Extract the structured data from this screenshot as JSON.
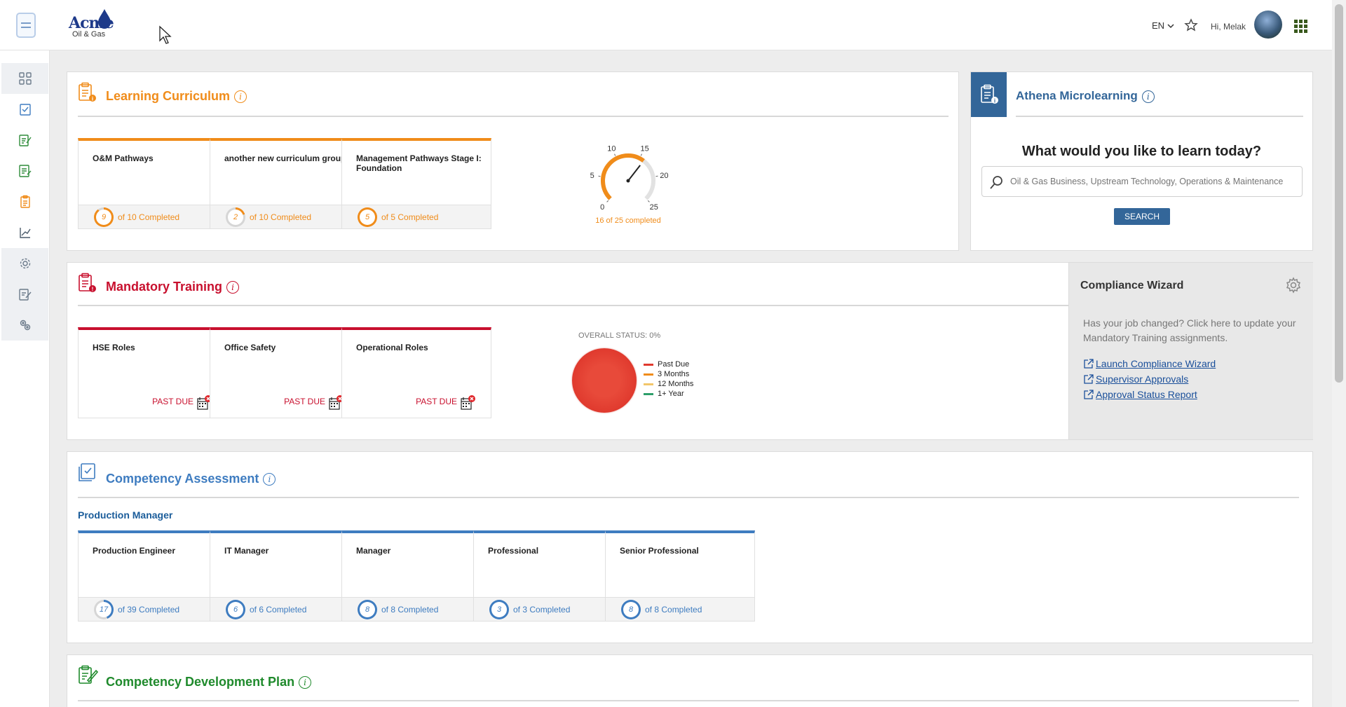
{
  "header": {
    "logo_word": "Acme",
    "logo_sub": "Oil & Gas",
    "language": "EN",
    "greeting": "Hi, Melak"
  },
  "learning": {
    "title": "Learning Curriculum",
    "tiles": [
      {
        "name": "O&M Pathways",
        "count": "9",
        "text": "of 10 Completed",
        "progress": 0.9
      },
      {
        "name": "another new curriculum group",
        "count": "2",
        "text": "of 10 Completed",
        "progress": 0.2
      },
      {
        "name": "Management Pathways Stage I: Foundation",
        "count": "5",
        "text": "of 5 Completed",
        "progress": 1.0
      }
    ],
    "gauge": {
      "ticks": [
        "0",
        "5",
        "10",
        "15",
        "20",
        "25"
      ],
      "value": 16,
      "max": 25,
      "label": "16 of 25 completed"
    }
  },
  "athena": {
    "title": "Athena Microlearning",
    "question": "What would you like to learn today?",
    "placeholder": "Oil & Gas Business, Upstream Technology, Operations & Maintenance",
    "search_label": "SEARCH"
  },
  "mandatory": {
    "title": "Mandatory Training",
    "tiles": [
      {
        "name": "HSE Roles",
        "status": "PAST DUE"
      },
      {
        "name": "Office Safety",
        "status": "PAST DUE"
      },
      {
        "name": "Operational Roles",
        "status": "PAST DUE"
      }
    ],
    "overall_status": "OVERALL STATUS: 0%",
    "legend": [
      {
        "label": "Past Due",
        "color": "#e03a2e"
      },
      {
        "label": "3 Months",
        "color": "#f08c1a"
      },
      {
        "label": "12 Months",
        "color": "#f2c66a"
      },
      {
        "label": "1+ Year",
        "color": "#2e9e6a"
      }
    ]
  },
  "compliance": {
    "title": "Compliance Wizard",
    "description": "Has your job changed? Click here to update your Mandatory Training assignments.",
    "links": [
      "Launch Compliance Wizard",
      "Supervisor Approvals",
      "Approval Status Report"
    ]
  },
  "competency": {
    "title": "Competency Assessment",
    "role": "Production Manager",
    "tiles": [
      {
        "name": "Production Engineer",
        "count": "17",
        "text": "of 39 Completed",
        "progress": 0.44
      },
      {
        "name": "IT Manager",
        "count": "6",
        "text": "of 6 Completed",
        "progress": 1.0
      },
      {
        "name": "Manager",
        "count": "8",
        "text": "of 8 Completed",
        "progress": 1.0
      },
      {
        "name": "Professional",
        "count": "3",
        "text": "of 3 Completed",
        "progress": 1.0
      },
      {
        "name": "Senior Professional",
        "count": "8",
        "text": "of 8 Completed",
        "progress": 1.0
      }
    ]
  },
  "development": {
    "title": "Competency Development Plan"
  },
  "colors": {
    "orange": "#f08c1a",
    "red": "#c8102e",
    "blue": "#3e7cc0",
    "green": "#1f8a2c",
    "athena": "#336699"
  }
}
